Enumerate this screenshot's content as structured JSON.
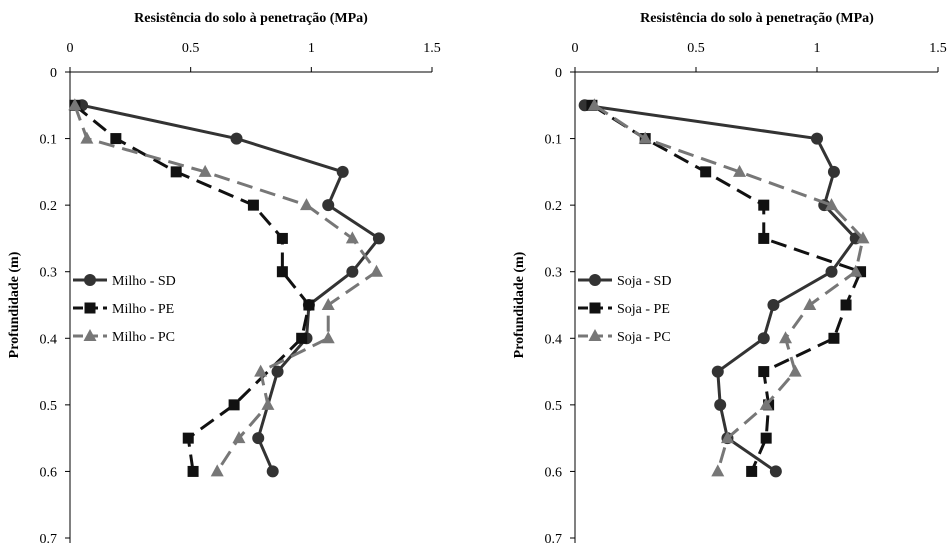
{
  "chart_data": [
    {
      "type": "line",
      "title": "Resistência do solo à penetração (MPa)",
      "xlabel": "Resistência do solo à penetração (MPa)",
      "ylabel": "Profundidade (m)",
      "xlim": [
        0,
        1.5
      ],
      "ylim": [
        0,
        0.7
      ],
      "y_inverted": true,
      "x_axis_position": "top",
      "x_ticks": [
        "0",
        "0.5",
        "1",
        "1.5"
      ],
      "y_ticks": [
        "0",
        "0.1",
        "0.2",
        "0.3",
        "0.4",
        "0.5",
        "0.6",
        "0.7"
      ],
      "grid": false,
      "legend_position": "left-middle",
      "series": [
        {
          "name": "Milho - SD",
          "marker": "circle",
          "line": "solid",
          "color": "#333333",
          "x": [
            0.05,
            0.69,
            1.13,
            1.07,
            1.28,
            1.17,
            0.99,
            0.98,
            0.86,
            0.78,
            0.84
          ],
          "y": [
            0.05,
            0.1,
            0.15,
            0.2,
            0.25,
            0.3,
            0.35,
            0.4,
            0.45,
            0.55,
            0.6
          ]
        },
        {
          "name": "Milho - PE",
          "marker": "square",
          "line": "dashed",
          "color": "#111111",
          "x": [
            0.02,
            0.19,
            0.44,
            0.76,
            0.88,
            0.88,
            0.99,
            0.96,
            0.68,
            0.49,
            0.51
          ],
          "y": [
            0.05,
            0.1,
            0.15,
            0.2,
            0.25,
            0.3,
            0.35,
            0.4,
            0.5,
            0.55,
            0.6
          ]
        },
        {
          "name": "Milho - PC",
          "marker": "triangle",
          "line": "dashed",
          "color": "#777777",
          "x": [
            0.02,
            0.07,
            0.56,
            0.98,
            1.17,
            1.27,
            1.07,
            1.07,
            0.79,
            0.82,
            0.7,
            0.61
          ],
          "y": [
            0.05,
            0.1,
            0.15,
            0.2,
            0.25,
            0.3,
            0.35,
            0.4,
            0.45,
            0.5,
            0.55,
            0.6
          ]
        }
      ]
    },
    {
      "type": "line",
      "title": "Resistência do solo à penetração (MPa)",
      "xlabel": "Resistência do solo à penetração (MPa)",
      "ylabel": "Profundidade (m)",
      "xlim": [
        0,
        1.5
      ],
      "ylim": [
        0,
        0.7
      ],
      "y_inverted": true,
      "x_axis_position": "top",
      "x_ticks": [
        "0",
        "0.5",
        "1",
        "1.5"
      ],
      "y_ticks": [
        "0",
        "0.1",
        "0.2",
        "0.3",
        "0.4",
        "0.5",
        "0.6",
        "0.7"
      ],
      "grid": false,
      "legend_position": "left-middle",
      "series": [
        {
          "name": "Soja - SD",
          "marker": "circle",
          "line": "solid",
          "color": "#333333",
          "x": [
            0.04,
            1.0,
            1.07,
            1.03,
            1.16,
            1.06,
            0.82,
            0.78,
            0.59,
            0.6,
            0.63,
            0.83
          ],
          "y": [
            0.05,
            0.1,
            0.15,
            0.2,
            0.25,
            0.3,
            0.35,
            0.4,
            0.45,
            0.5,
            0.55,
            0.6
          ]
        },
        {
          "name": "Soja - PE",
          "marker": "square",
          "line": "dashed",
          "color": "#111111",
          "x": [
            0.07,
            0.29,
            0.54,
            0.78,
            0.78,
            1.18,
            1.12,
            1.07,
            0.78,
            0.8,
            0.79,
            0.73
          ],
          "y": [
            0.05,
            0.1,
            0.15,
            0.2,
            0.25,
            0.3,
            0.35,
            0.4,
            0.45,
            0.5,
            0.55,
            0.6
          ]
        },
        {
          "name": "Soja - PC",
          "marker": "triangle",
          "line": "dashed",
          "color": "#777777",
          "x": [
            0.08,
            0.29,
            0.68,
            1.06,
            1.19,
            1.16,
            0.97,
            0.87,
            0.91,
            0.79,
            0.63,
            0.59
          ],
          "y": [
            0.05,
            0.1,
            0.15,
            0.2,
            0.25,
            0.3,
            0.35,
            0.4,
            0.45,
            0.5,
            0.55,
            0.6
          ]
        }
      ]
    }
  ]
}
